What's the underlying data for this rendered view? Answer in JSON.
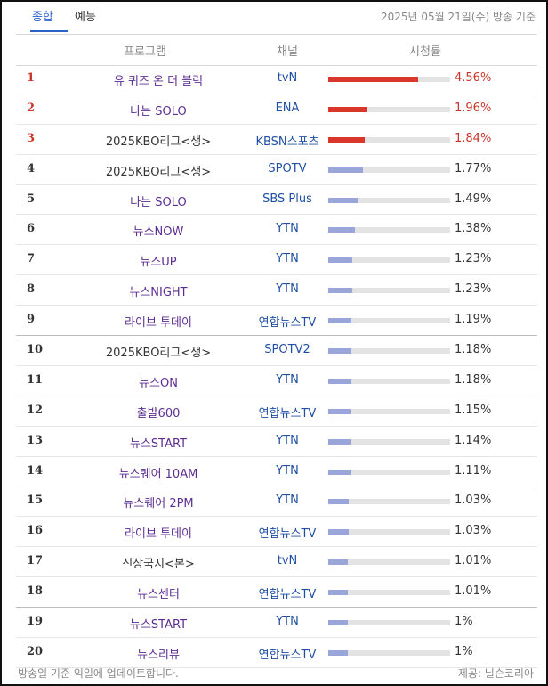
{
  "tabs": [
    {
      "label": "종합",
      "active": true
    },
    {
      "label": "예능",
      "active": false
    }
  ],
  "date_text": "2025년 05월 21일(수) 방송 기준",
  "columns": {
    "program": "프로그램",
    "channel": "채널",
    "rating": "시청률"
  },
  "colors": {
    "accent": "#2a62c9",
    "top_red": "#d9362c",
    "bar_default": "#9aa6d9",
    "program_purple": "#5c2d91",
    "channel_blue": "#1f4fa3"
  },
  "rows": [
    {
      "rank": "1",
      "program": "유 퀴즈 온 더 블럭",
      "channel": "tvN",
      "rating": "4.56%",
      "value": 4.56,
      "top": true,
      "dark": false
    },
    {
      "rank": "2",
      "program": "나는 SOLO",
      "channel": "ENA",
      "rating": "1.96%",
      "value": 1.96,
      "top": true,
      "dark": false
    },
    {
      "rank": "3",
      "program": "2025KBO리그<생>",
      "channel": "KBSN스포츠",
      "rating": "1.84%",
      "value": 1.84,
      "top": true,
      "dark": true
    },
    {
      "rank": "4",
      "program": "2025KBO리그<생>",
      "channel": "SPOTV",
      "rating": "1.77%",
      "value": 1.77,
      "top": false,
      "dark": true
    },
    {
      "rank": "5",
      "program": "나는 SOLO",
      "channel": "SBS Plus",
      "rating": "1.49%",
      "value": 1.49,
      "top": false,
      "dark": false
    },
    {
      "rank": "6",
      "program": "뉴스NOW",
      "channel": "YTN",
      "rating": "1.38%",
      "value": 1.38,
      "top": false,
      "dark": false
    },
    {
      "rank": "7",
      "program": "뉴스UP",
      "channel": "YTN",
      "rating": "1.23%",
      "value": 1.23,
      "top": false,
      "dark": false
    },
    {
      "rank": "8",
      "program": "뉴스NIGHT",
      "channel": "YTN",
      "rating": "1.23%",
      "value": 1.23,
      "top": false,
      "dark": false
    },
    {
      "rank": "9",
      "program": "라이브 투데이",
      "channel": "연합뉴스TV",
      "rating": "1.19%",
      "value": 1.19,
      "top": false,
      "dark": false
    },
    {
      "rank": "10",
      "program": "2025KBO리그<생>",
      "channel": "SPOTV2",
      "rating": "1.18%",
      "value": 1.18,
      "top": false,
      "dark": true
    },
    {
      "rank": "11",
      "program": "뉴스ON",
      "channel": "YTN",
      "rating": "1.18%",
      "value": 1.18,
      "top": false,
      "dark": false
    },
    {
      "rank": "12",
      "program": "출발600",
      "channel": "연합뉴스TV",
      "rating": "1.15%",
      "value": 1.15,
      "top": false,
      "dark": false
    },
    {
      "rank": "13",
      "program": "뉴스START",
      "channel": "YTN",
      "rating": "1.14%",
      "value": 1.14,
      "top": false,
      "dark": false
    },
    {
      "rank": "14",
      "program": "뉴스퀘어 10AM",
      "channel": "YTN",
      "rating": "1.11%",
      "value": 1.11,
      "top": false,
      "dark": false
    },
    {
      "rank": "15",
      "program": "뉴스퀘어 2PM",
      "channel": "YTN",
      "rating": "1.03%",
      "value": 1.03,
      "top": false,
      "dark": false
    },
    {
      "rank": "16",
      "program": "라이브 투데이",
      "channel": "연합뉴스TV",
      "rating": "1.03%",
      "value": 1.03,
      "top": false,
      "dark": false
    },
    {
      "rank": "17",
      "program": "신상국지<본>",
      "channel": "tvN",
      "rating": "1.01%",
      "value": 1.01,
      "top": false,
      "dark": true
    },
    {
      "rank": "18",
      "program": "뉴스센터",
      "channel": "연합뉴스TV",
      "rating": "1.01%",
      "value": 1.01,
      "top": false,
      "dark": false
    },
    {
      "rank": "19",
      "program": "뉴스START",
      "channel": "YTN",
      "rating": "1%",
      "value": 1.0,
      "top": false,
      "dark": false
    },
    {
      "rank": "20",
      "program": "뉴스리뷰",
      "channel": "연합뉴스TV",
      "rating": "1%",
      "value": 1.0,
      "top": false,
      "dark": false
    }
  ],
  "footer": {
    "left": "방송일 기준 익일에 업데이트합니다.",
    "right": "제공: 닐슨코리아"
  }
}
